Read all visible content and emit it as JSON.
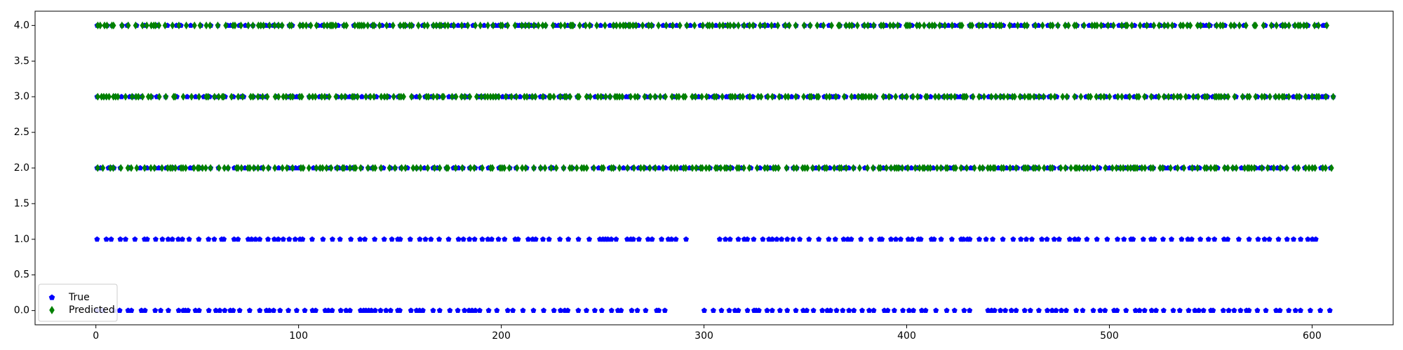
{
  "chart_data": {
    "type": "scatter",
    "title": "",
    "xlabel": "",
    "ylabel": "",
    "xlim": [
      -30,
      640
    ],
    "ylim": [
      -0.2,
      4.2
    ],
    "xticks": [
      0,
      100,
      200,
      300,
      400,
      500,
      600
    ],
    "yticks": [
      0.0,
      0.5,
      1.0,
      1.5,
      2.0,
      2.5,
      3.0,
      3.5,
      4.0
    ],
    "xtick_labels": [
      "0",
      "100",
      "200",
      "300",
      "400",
      "500",
      "600"
    ],
    "ytick_labels": [
      "0.0",
      "0.5",
      "1.0",
      "1.5",
      "2.0",
      "2.5",
      "3.0",
      "3.5",
      "4.0"
    ],
    "grid": false,
    "legend_position": "lower-left",
    "series": [
      {
        "name": "True",
        "marker": "pentagon",
        "color": "#0000ff",
        "x_min": 0,
        "x_max": 611,
        "y_levels": [
          0,
          1,
          2,
          3,
          4
        ],
        "gaps_at_y0": [
          [
            285,
            296
          ],
          [
            432,
            440
          ]
        ],
        "gaps_at_y1": [
          [
            296,
            306
          ],
          [
            607,
            611
          ]
        ]
      },
      {
        "name": "Predicted",
        "marker": "thin_diamond",
        "color": "#008000",
        "x_min": 0,
        "x_max": 611,
        "y_levels": [
          2,
          3,
          4
        ]
      }
    ]
  }
}
